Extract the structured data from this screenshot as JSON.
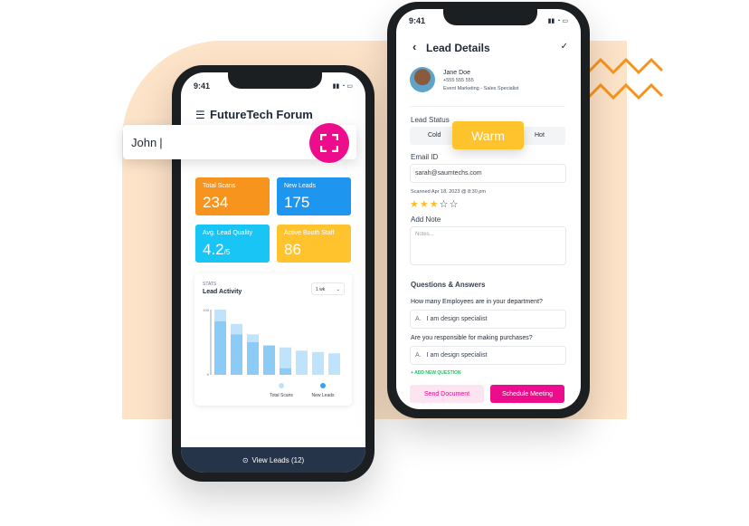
{
  "colors": {
    "peach": "#fde3c8",
    "accent": "#ec0c8c",
    "orange": "#f7941d",
    "blue": "#1e96f0",
    "cyan": "#18c5f5",
    "yellow": "#ffc42d"
  },
  "left": {
    "time": "9:41",
    "title": "FutureTech Forum",
    "search_value": "John",
    "cards": [
      {
        "label": "Total Scans",
        "value": "234",
        "color": "#f7941d"
      },
      {
        "label": "New Leads",
        "value": "175",
        "color": "#1e96f0"
      },
      {
        "label": "Avg. Lead Quality",
        "value": "4.2",
        "suffix": "/5",
        "color": "#18c5f5"
      },
      {
        "label": "Active Booth Staff",
        "value": "86",
        "color": "#ffc42d"
      }
    ],
    "chart_data": {
      "type": "bar",
      "overline": "STATS",
      "title": "Lead Activity",
      "range": "1 wk",
      "ylim": [
        0,
        100
      ],
      "yticks": [
        "100",
        "0"
      ],
      "series": [
        {
          "name": "Total Scans",
          "color": "#bfe3fb",
          "values": [
            100,
            78,
            62,
            45,
            42,
            37,
            35,
            33
          ]
        },
        {
          "name": "New Leads",
          "color": "#8ccbf6",
          "values": [
            82,
            62,
            50,
            45,
            10,
            0,
            0,
            0
          ]
        }
      ]
    },
    "legend": [
      "Total Scans",
      "New Leads"
    ],
    "footer": "View Leads (12)"
  },
  "right": {
    "time": "9:41",
    "title": "Lead Details",
    "contact": {
      "name": "Jane Doe",
      "phone": "+555 555 555",
      "role": "Event Marketing - Sales Specialist"
    },
    "status_label": "Lead Status",
    "status_options": [
      "Cold",
      "Warm",
      "Hot"
    ],
    "email_label": "Email ID",
    "email": "sarah@saumtechs.com",
    "scanned": "Scanned Apr 18, 2023 @ 8:30 pm",
    "rating": 3,
    "rating_max": 5,
    "note_label": "Add Note",
    "note_placeholder": "Notes...",
    "qa_title": "Questions & Answers",
    "questions": [
      {
        "q": "How many Employees are in your department?",
        "prefix": "A.",
        "a": "I am design specialist"
      },
      {
        "q": "Are you responsible for making purchases?",
        "prefix": "A.",
        "a": "I am design specialist"
      }
    ],
    "add_question": "+ ADD NEW QUESTION",
    "send": "Send Document",
    "schedule": "Schedule Meeting"
  }
}
